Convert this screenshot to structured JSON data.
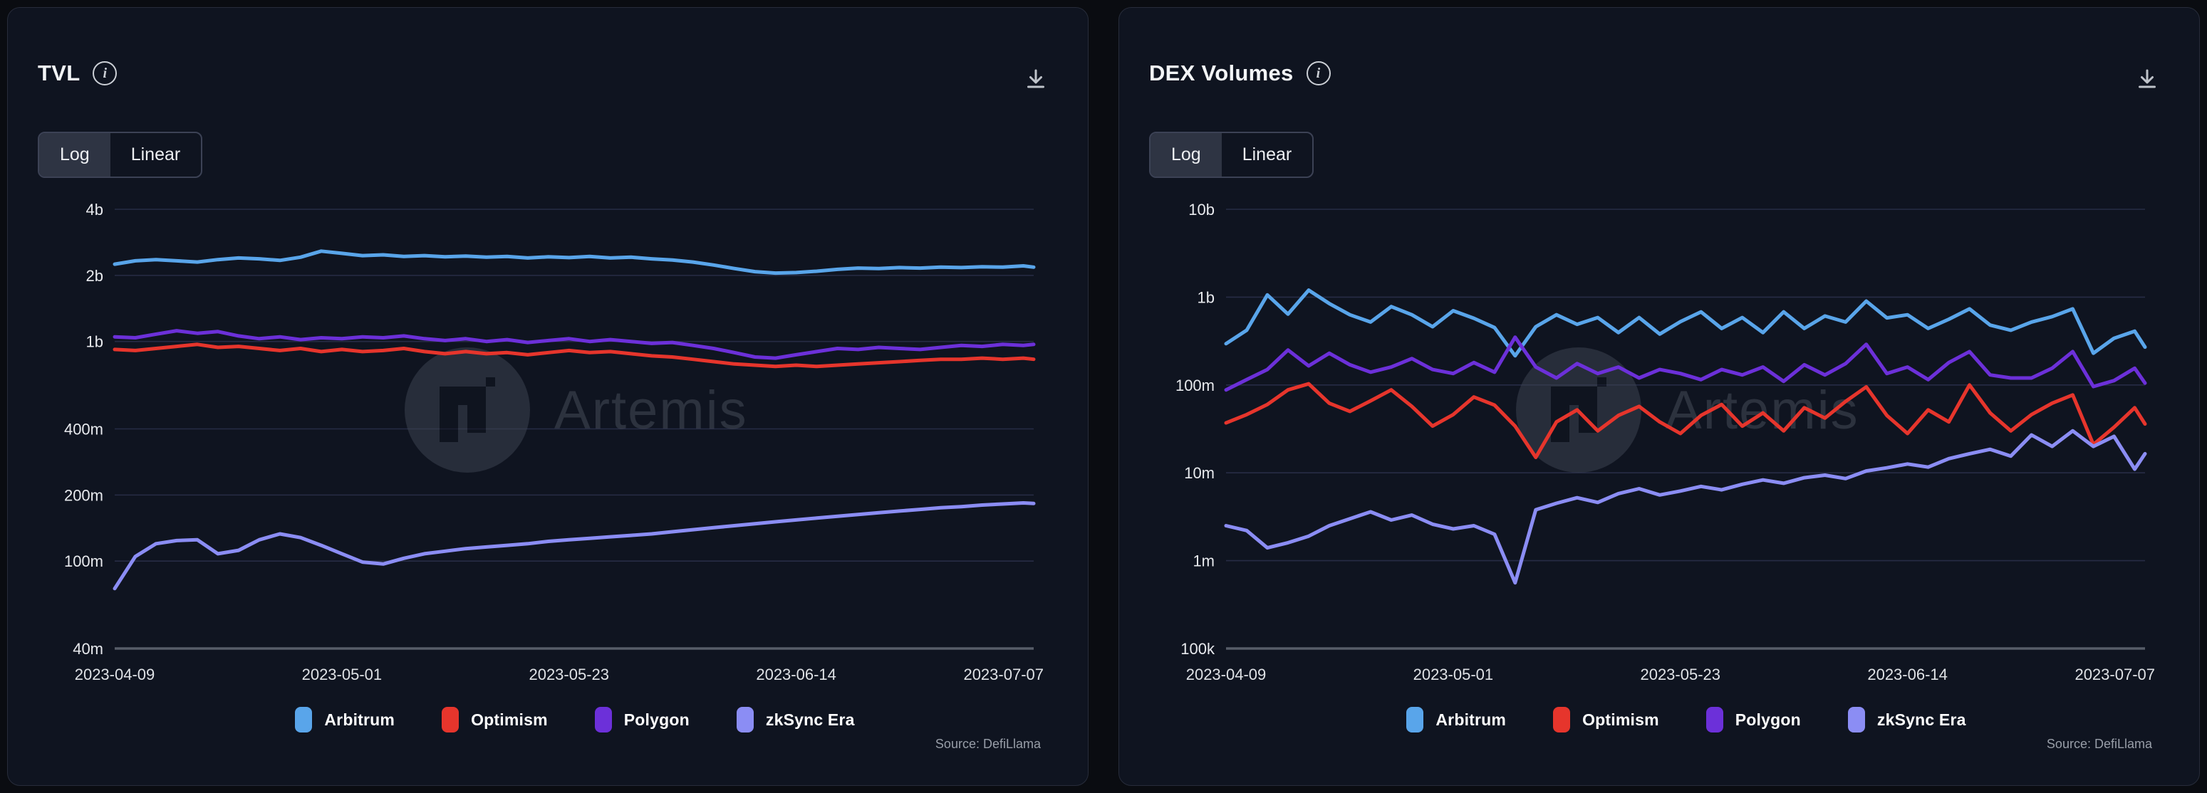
{
  "page": {
    "background": "#0a0c11"
  },
  "source": "Source: DefiLlama",
  "watermark": "Artemis",
  "panels": [
    {
      "title": "TVL",
      "toggle": {
        "options": [
          "Log",
          "Linear"
        ],
        "active": "Log"
      },
      "source": "Source: DefiLlama",
      "chart_data": {
        "type": "line",
        "title": "TVL",
        "y_scale": "log",
        "y_unit": "USD",
        "grid": true,
        "legend_position": "bottom",
        "x_range": [
          "2023-04-09",
          "2023-07-07"
        ],
        "x_tick_labels": [
          "2023-04-09",
          "2023-05-01",
          "2023-05-23",
          "2023-06-14",
          "2023-07-07"
        ],
        "y_min_m": 40,
        "y_ticks": [
          {
            "label": "4b",
            "value_m": 4000
          },
          {
            "label": "2b",
            "value_m": 2000
          },
          {
            "label": "1b",
            "value_m": 1000
          },
          {
            "label": "400m",
            "value_m": 400
          },
          {
            "label": "200m",
            "value_m": 200
          },
          {
            "label": "100m",
            "value_m": 100
          },
          {
            "label": "40m",
            "value_m": 40
          }
        ],
        "series": [
          {
            "name": "Arbitrum",
            "color": "#59a5ea",
            "values_m": [
              2250,
              2330,
              2360,
              2330,
              2300,
              2360,
              2400,
              2380,
              2340,
              2420,
              2580,
              2520,
              2460,
              2480,
              2440,
              2460,
              2430,
              2450,
              2420,
              2440,
              2400,
              2430,
              2410,
              2440,
              2400,
              2420,
              2380,
              2350,
              2300,
              2230,
              2150,
              2080,
              2050,
              2060,
              2090,
              2130,
              2160,
              2150,
              2170,
              2160,
              2180,
              2170,
              2190,
              2180,
              2210,
              2180
            ]
          },
          {
            "name": "Optimism",
            "color": "#e6352c",
            "values_m": [
              920,
              910,
              930,
              950,
              970,
              940,
              950,
              930,
              910,
              930,
              900,
              920,
              900,
              910,
              930,
              900,
              880,
              900,
              880,
              890,
              870,
              890,
              910,
              890,
              900,
              880,
              860,
              850,
              830,
              810,
              790,
              780,
              770,
              780,
              770,
              780,
              790,
              800,
              810,
              820,
              830,
              830,
              840,
              830,
              840,
              830
            ]
          },
          {
            "name": "Polygon",
            "color": "#6c30d9",
            "values_m": [
              1050,
              1040,
              1080,
              1120,
              1090,
              1110,
              1060,
              1030,
              1050,
              1020,
              1040,
              1030,
              1050,
              1040,
              1060,
              1030,
              1010,
              1030,
              1000,
              1020,
              990,
              1010,
              1030,
              1000,
              1020,
              1000,
              980,
              990,
              960,
              930,
              890,
              850,
              840,
              870,
              900,
              930,
              920,
              940,
              930,
              920,
              940,
              960,
              950,
              970,
              960,
              970
            ]
          },
          {
            "name": "zkSync Era",
            "color": "#8b8df4",
            "values_m": [
              75,
              105,
              120,
              124,
              125,
              108,
              112,
              125,
              133,
              128,
              118,
              108,
              99,
              97,
              103,
              108,
              111,
              114,
              116,
              118,
              120,
              123,
              125,
              127,
              129,
              131,
              133,
              136,
              139,
              142,
              145,
              148,
              151,
              154,
              157,
              160,
              163,
              166,
              169,
              172,
              175,
              177,
              180,
              182,
              184,
              183
            ]
          }
        ]
      }
    },
    {
      "title": "DEX Volumes",
      "toggle": {
        "options": [
          "Log",
          "Linear"
        ],
        "active": "Log"
      },
      "source": "Source: DefiLlama",
      "chart_data": {
        "type": "line",
        "title": "DEX Volumes",
        "y_scale": "log",
        "y_unit": "USD",
        "grid": true,
        "legend_position": "bottom",
        "x_range": [
          "2023-04-09",
          "2023-07-07"
        ],
        "x_tick_labels": [
          "2023-04-09",
          "2023-05-01",
          "2023-05-23",
          "2023-06-14",
          "2023-07-07"
        ],
        "y_min_m": 0.1,
        "y_ticks": [
          {
            "label": "10b",
            "value_m": 10000
          },
          {
            "label": "1b",
            "value_m": 1000
          },
          {
            "label": "100m",
            "value_m": 100
          },
          {
            "label": "10m",
            "value_m": 10
          },
          {
            "label": "1m",
            "value_m": 1
          },
          {
            "label": "100k",
            "value_m": 0.1
          }
        ],
        "series": [
          {
            "name": "Arbitrum",
            "color": "#59a5ea",
            "values_m": [
              295,
              420,
              1060,
              640,
              1200,
              845,
              630,
              520,
              780,
              630,
              460,
              700,
              575,
              450,
              215,
              460,
              630,
              490,
              585,
              395,
              585,
              380,
              525,
              680,
              440,
              585,
              395,
              680,
              440,
              610,
              520,
              900,
              580,
              630,
              440,
              560,
              735,
              480,
              420,
              520,
              600,
              735,
              230,
              340,
              410,
              270
            ]
          },
          {
            "name": "Optimism",
            "color": "#e6352c",
            "values_m": [
              37,
              46,
              60,
              88,
              103,
              62,
              50,
              66,
              88,
              57,
              34,
              46,
              73,
              59,
              34,
              15,
              38,
              52,
              30,
              45,
              57,
              38,
              28,
              45,
              60,
              34,
              48,
              30,
              55,
              42,
              65,
              95,
              45,
              28,
              52,
              38,
              100,
              48,
              30,
              46,
              62,
              77,
              21,
              33,
              55,
              36
            ]
          },
          {
            "name": "Polygon",
            "color": "#6c30d9",
            "values_m": [
              88,
              115,
              150,
              250,
              165,
              230,
              170,
              140,
              160,
              200,
              150,
              135,
              180,
              140,
              350,
              160,
              120,
              175,
              135,
              160,
              120,
              150,
              135,
              115,
              150,
              130,
              160,
              110,
              170,
              130,
              175,
              290,
              135,
              160,
              115,
              180,
              240,
              130,
              120,
              120,
              155,
              240,
              96,
              112,
              155,
              105
            ]
          },
          {
            "name": "zkSync Era",
            "color": "#8b8df4",
            "values_m": [
              2.5,
              2.2,
              1.4,
              1.6,
              1.9,
              2.5,
              3.0,
              3.6,
              2.9,
              3.3,
              2.6,
              2.3,
              2.5,
              2.0,
              0.56,
              3.8,
              4.5,
              5.2,
              4.6,
              5.8,
              6.6,
              5.6,
              6.2,
              7.0,
              6.4,
              7.4,
              8.3,
              7.6,
              8.8,
              9.4,
              8.6,
              10.5,
              11.4,
              12.6,
              11.6,
              14.5,
              16.5,
              18.5,
              15.5,
              27,
              20,
              30,
              20,
              26,
              11,
              16.5
            ]
          }
        ]
      }
    }
  ]
}
